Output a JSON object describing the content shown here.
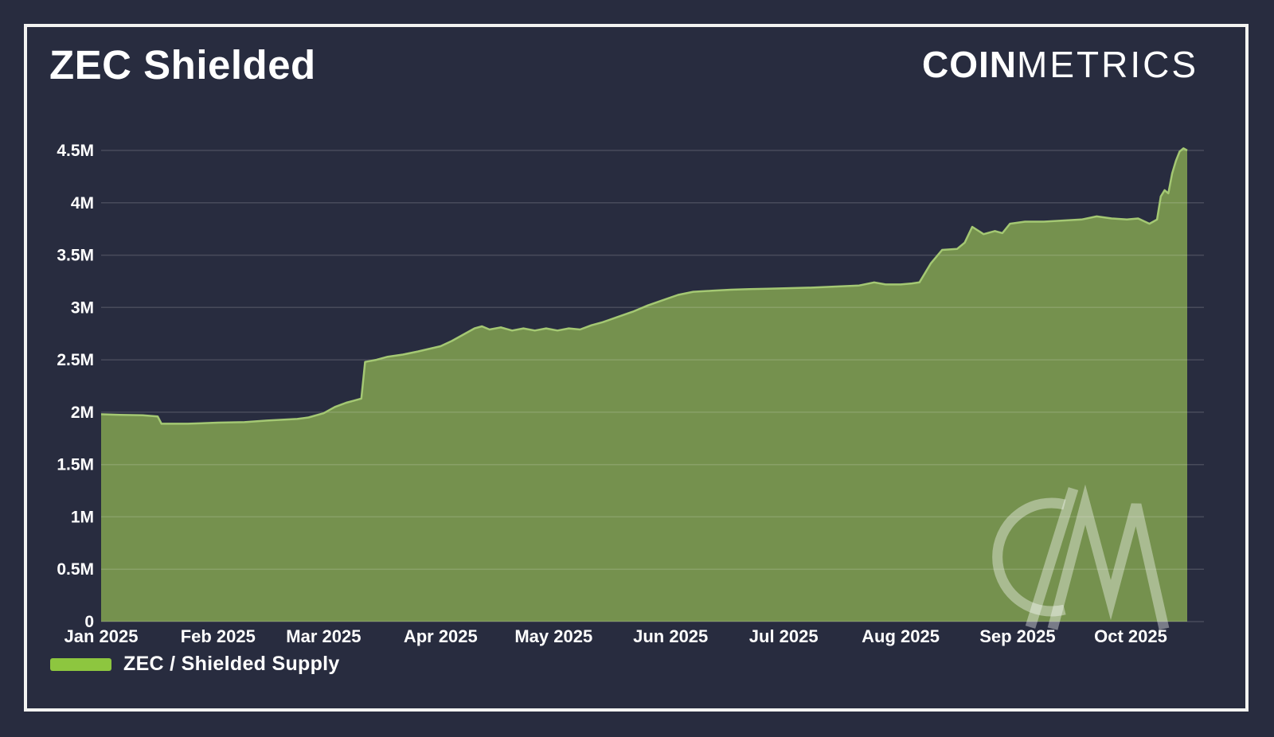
{
  "title": "ZEC Shielded",
  "brand": {
    "part_bold": "COIN",
    "part_light": "METRICS"
  },
  "legend": {
    "items": [
      {
        "label": "ZEC / Shielded Supply",
        "swatch_color": "#8dc63f"
      }
    ]
  },
  "watermark": {
    "name": "coinmetrics-cm-monogram"
  },
  "colors": {
    "background": "#282c3f",
    "frame": "#f3f3f1",
    "text": "#ffffff",
    "grid": "rgba(255,255,255,0.15)",
    "area_fill": "#75914e",
    "area_line": "#a4c873",
    "legend_swatch": "#8dc63f",
    "watermark": "rgba(255,255,255,0.38)"
  },
  "chart_data": {
    "type": "area",
    "title": "ZEC Shielded",
    "xlabel": "",
    "ylabel": "",
    "unit": "ZEC",
    "grid": "horizontal",
    "legend_position": "bottom-left",
    "x_range": [
      "2025-01-01",
      "2025-10-16"
    ],
    "ylim": [
      0,
      4650000
    ],
    "y_ticks": [
      {
        "value": 0,
        "label": "0"
      },
      {
        "value": 500000,
        "label": "0.5M"
      },
      {
        "value": 1000000,
        "label": "1M"
      },
      {
        "value": 1500000,
        "label": "1.5M"
      },
      {
        "value": 2000000,
        "label": "2M"
      },
      {
        "value": 2500000,
        "label": "2.5M"
      },
      {
        "value": 3000000,
        "label": "3M"
      },
      {
        "value": 3500000,
        "label": "3.5M"
      },
      {
        "value": 4000000,
        "label": "4M"
      },
      {
        "value": 4500000,
        "label": "4.5M"
      }
    ],
    "x_ticks": [
      {
        "date": "2025-01-01",
        "label": "Jan 2025"
      },
      {
        "date": "2025-02-01",
        "label": "Feb 2025"
      },
      {
        "date": "2025-03-01",
        "label": "Mar 2025"
      },
      {
        "date": "2025-04-01",
        "label": "Apr 2025"
      },
      {
        "date": "2025-05-01",
        "label": "May 2025"
      },
      {
        "date": "2025-06-01",
        "label": "Jun 2025"
      },
      {
        "date": "2025-07-01",
        "label": "Jul 2025"
      },
      {
        "date": "2025-08-01",
        "label": "Aug 2025"
      },
      {
        "date": "2025-09-01",
        "label": "Sep 2025"
      },
      {
        "date": "2025-10-01",
        "label": "Oct 2025"
      }
    ],
    "series": [
      {
        "name": "ZEC / Shielded Supply",
        "points": [
          [
            "2025-01-01",
            1980000
          ],
          [
            "2025-01-06",
            1975000
          ],
          [
            "2025-01-12",
            1970000
          ],
          [
            "2025-01-16",
            1960000
          ],
          [
            "2025-01-17",
            1890000
          ],
          [
            "2025-01-24",
            1890000
          ],
          [
            "2025-02-01",
            1900000
          ],
          [
            "2025-02-08",
            1905000
          ],
          [
            "2025-02-14",
            1920000
          ],
          [
            "2025-02-19",
            1930000
          ],
          [
            "2025-02-22",
            1935000
          ],
          [
            "2025-02-25",
            1950000
          ],
          [
            "2025-03-01",
            1990000
          ],
          [
            "2025-03-04",
            2050000
          ],
          [
            "2025-03-07",
            2090000
          ],
          [
            "2025-03-09",
            2110000
          ],
          [
            "2025-03-11",
            2130000
          ],
          [
            "2025-03-12",
            2480000
          ],
          [
            "2025-03-15",
            2500000
          ],
          [
            "2025-03-18",
            2530000
          ],
          [
            "2025-03-22",
            2550000
          ],
          [
            "2025-03-26",
            2580000
          ],
          [
            "2025-04-01",
            2630000
          ],
          [
            "2025-04-04",
            2680000
          ],
          [
            "2025-04-07",
            2740000
          ],
          [
            "2025-04-10",
            2800000
          ],
          [
            "2025-04-12",
            2820000
          ],
          [
            "2025-04-14",
            2790000
          ],
          [
            "2025-04-17",
            2810000
          ],
          [
            "2025-04-20",
            2780000
          ],
          [
            "2025-04-23",
            2800000
          ],
          [
            "2025-04-26",
            2780000
          ],
          [
            "2025-04-29",
            2800000
          ],
          [
            "2025-05-02",
            2780000
          ],
          [
            "2025-05-05",
            2800000
          ],
          [
            "2025-05-08",
            2790000
          ],
          [
            "2025-05-11",
            2830000
          ],
          [
            "2025-05-14",
            2860000
          ],
          [
            "2025-05-18",
            2910000
          ],
          [
            "2025-05-22",
            2960000
          ],
          [
            "2025-05-26",
            3020000
          ],
          [
            "2025-05-30",
            3070000
          ],
          [
            "2025-06-03",
            3120000
          ],
          [
            "2025-06-07",
            3150000
          ],
          [
            "2025-06-12",
            3160000
          ],
          [
            "2025-06-17",
            3170000
          ],
          [
            "2025-06-22",
            3175000
          ],
          [
            "2025-06-27",
            3180000
          ],
          [
            "2025-07-03",
            3185000
          ],
          [
            "2025-07-09",
            3190000
          ],
          [
            "2025-07-15",
            3200000
          ],
          [
            "2025-07-21",
            3210000
          ],
          [
            "2025-07-25",
            3240000
          ],
          [
            "2025-07-28",
            3220000
          ],
          [
            "2025-08-01",
            3220000
          ],
          [
            "2025-08-04",
            3230000
          ],
          [
            "2025-08-06",
            3240000
          ],
          [
            "2025-08-09",
            3420000
          ],
          [
            "2025-08-12",
            3550000
          ],
          [
            "2025-08-16",
            3560000
          ],
          [
            "2025-08-18",
            3620000
          ],
          [
            "2025-08-20",
            3770000
          ],
          [
            "2025-08-23",
            3700000
          ],
          [
            "2025-08-26",
            3730000
          ],
          [
            "2025-08-28",
            3710000
          ],
          [
            "2025-08-30",
            3800000
          ],
          [
            "2025-09-03",
            3820000
          ],
          [
            "2025-09-08",
            3820000
          ],
          [
            "2025-09-13",
            3830000
          ],
          [
            "2025-09-18",
            3840000
          ],
          [
            "2025-09-22",
            3870000
          ],
          [
            "2025-09-26",
            3850000
          ],
          [
            "2025-09-30",
            3840000
          ],
          [
            "2025-10-03",
            3850000
          ],
          [
            "2025-10-06",
            3800000
          ],
          [
            "2025-10-08",
            3840000
          ],
          [
            "2025-10-09",
            4060000
          ],
          [
            "2025-10-10",
            4120000
          ],
          [
            "2025-10-11",
            4090000
          ],
          [
            "2025-10-12",
            4280000
          ],
          [
            "2025-10-13",
            4400000
          ],
          [
            "2025-10-14",
            4490000
          ],
          [
            "2025-10-15",
            4520000
          ],
          [
            "2025-10-16",
            4500000
          ]
        ]
      }
    ]
  }
}
